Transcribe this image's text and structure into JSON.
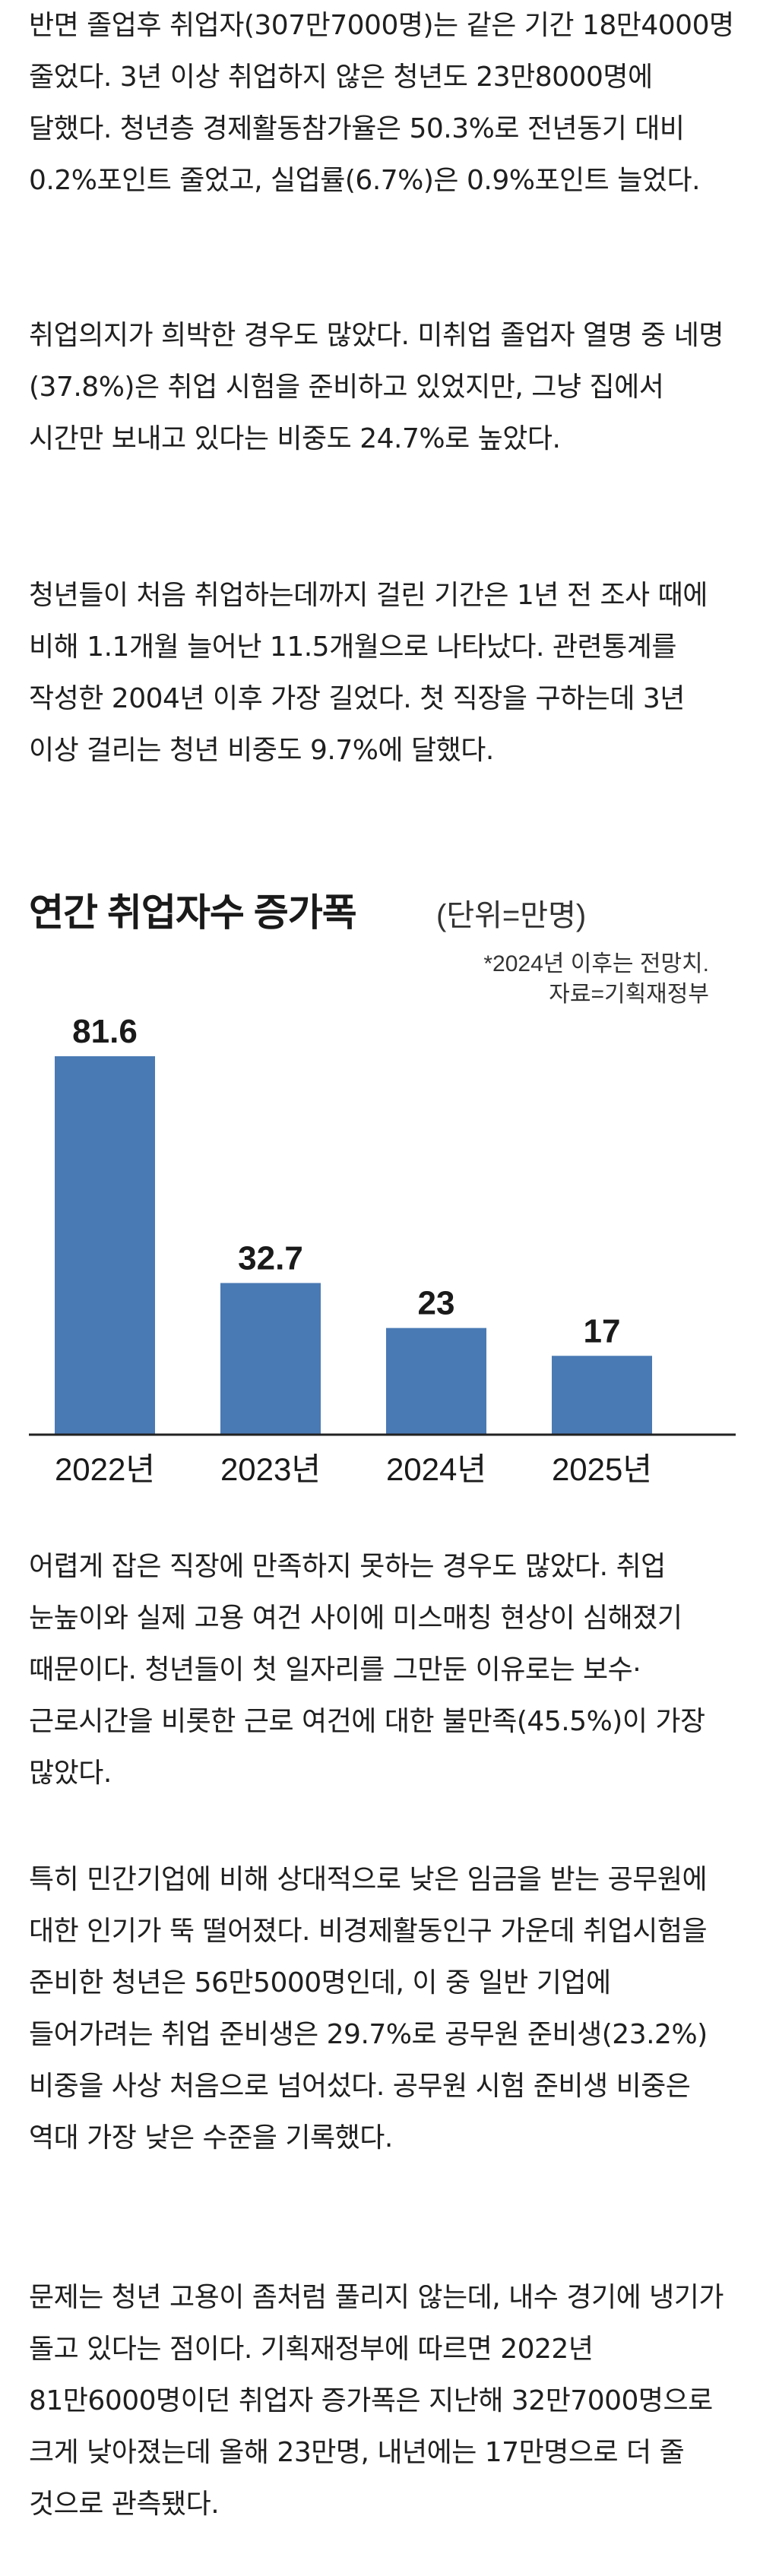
{
  "article": {
    "paragraphs": [
      "반면 졸업후 취업자(307만7000명)는 같은 기간 18만4000명 줄었다. 3년 이상 취업하지 않은 청년도 23만8000명에 달했다. 청년층 경제활동참가율은 50.3%로 전년동기 대비 0.2%포인트 줄었고, 실업률(6.7%)은 0.9%포인트 늘었다.",
      "취업의지가 희박한 경우도 많았다. 미취업 졸업자 열명 중 네명(37.8%)은 취업 시험을 준비하고 있었지만, 그냥 집에서 시간만 보내고 있다는 비중도 24.7%로 높았다.",
      "청년들이 처음 취업하는데까지 걸린 기간은 1년 전 조사 때에 비해 1.1개월 늘어난 11.5개월으로 나타났다. 관련통계를 작성한 2004년 이후 가장 길었다. 첫 직장을 구하는데 3년 이상 걸리는 청년 비중도 9.7%에 달했다.",
      "어렵게 잡은 직장에 만족하지 못하는 경우도 많았다. 취업 눈높이와 실제 고용 여건 사이에 미스매칭 현상이 심해졌기 때문이다. 청년들이 첫 일자리를 그만둔 이유로는 보수·근로시간을 비롯한 근로 여건에 대한 불만족(45.5%)이 가장 많았다.",
      "특히 민간기업에 비해 상대적으로 낮은 임금을 받는 공무원에 대한 인기가 뚝 떨어졌다. 비경제활동인구 가운데 취업시험을 준비한 청년은 56만5000명인데, 이 중 일반 기업에 들어가려는 취업 준비생은 29.7%로 공무원 준비생(23.2%) 비중을 사상 처음으로 넘어섰다. 공무원 시험 준비생 비중은 역대 가장 낮은 수준을 기록했다.",
      "문제는 청년 고용이 좀처럼 풀리지 않는데, 내수 경기에 냉기가 돌고 있다는 점이다. 기획재정부에 따르면 2022년 81만6000명이던 취업자 증가폭은 지난해 32만7000명으로 크게 낮아졌는데 올해 23만명, 내년에는 17만명으로 더 줄 것으로 관측됐다."
    ]
  },
  "chart": {
    "title": "연간 취업자수 증가폭",
    "unit": "(단위=만명)",
    "note": "*2024년 이후는 전망치.",
    "source": "자료=기획재정부",
    "bar_color": "#4a7ab4",
    "axis_color": "#222222"
  },
  "chart_data": {
    "type": "bar",
    "title": "연간 취업자수 증가폭",
    "categories": [
      "2022년",
      "2023년",
      "2024년",
      "2025년"
    ],
    "values": [
      81.6,
      32.7,
      23,
      17
    ],
    "value_labels": [
      "81.6",
      "32.7",
      "23",
      "17"
    ],
    "ylabel": "(단위=만명)",
    "ylim": [
      0,
      81.6
    ],
    "grid": false,
    "legend": "none"
  }
}
